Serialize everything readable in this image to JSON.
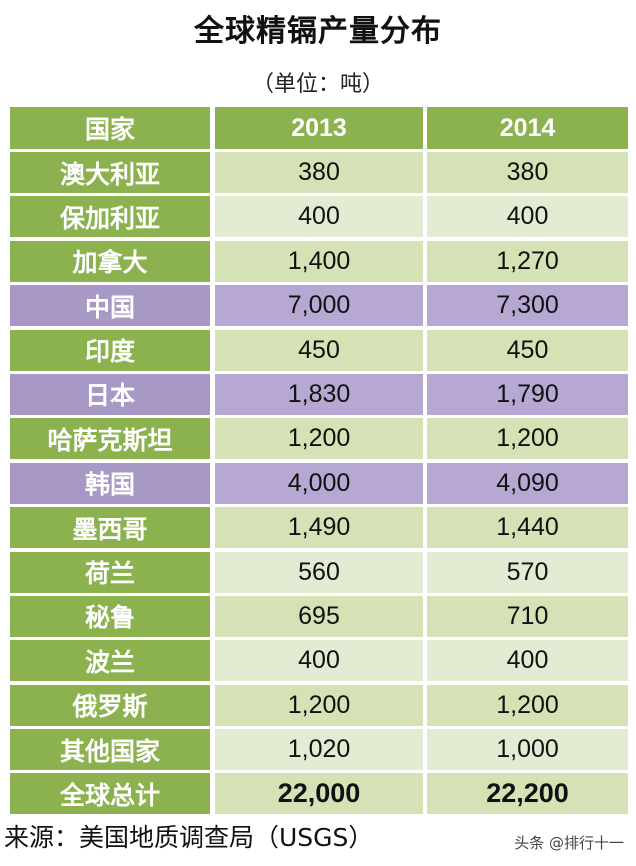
{
  "title": "全球精镉产量分布",
  "unit": "（单位：吨）",
  "chart_data": {
    "type": "table",
    "title": "全球精镉产量分布",
    "unit": "（单位：吨）",
    "columns": [
      "国家",
      "2013",
      "2014"
    ],
    "rows": [
      {
        "country": "澳大利亚",
        "v2013": "380",
        "v2014": "380",
        "highlight": false
      },
      {
        "country": "保加利亚",
        "v2013": "400",
        "v2014": "400",
        "highlight": false
      },
      {
        "country": "加拿大",
        "v2013": "1,400",
        "v2014": "1,270",
        "highlight": false
      },
      {
        "country": "中国",
        "v2013": "7,000",
        "v2014": "7,300",
        "highlight": true
      },
      {
        "country": "印度",
        "v2013": "450",
        "v2014": "450",
        "highlight": false
      },
      {
        "country": "日本",
        "v2013": "1,830",
        "v2014": "1,790",
        "highlight": true
      },
      {
        "country": "哈萨克斯坦",
        "v2013": "1,200",
        "v2014": "1,200",
        "highlight": false
      },
      {
        "country": "韩国",
        "v2013": "4,000",
        "v2014": "4,090",
        "highlight": true
      },
      {
        "country": "墨西哥",
        "v2013": "1,490",
        "v2014": "1,440",
        "highlight": false
      },
      {
        "country": "荷兰",
        "v2013": "560",
        "v2014": "570",
        "highlight": false
      },
      {
        "country": "秘鲁",
        "v2013": "695",
        "v2014": "710",
        "highlight": false
      },
      {
        "country": "波兰",
        "v2013": "400",
        "v2014": "400",
        "highlight": false
      },
      {
        "country": "俄罗斯",
        "v2013": "1,200",
        "v2014": "1,200",
        "highlight": false
      },
      {
        "country": "其他国家",
        "v2013": "1,020",
        "v2014": "1,000",
        "highlight": false
      }
    ],
    "total": {
      "country": "全球总计",
      "v2013": "22,000",
      "v2014": "22,200"
    },
    "colors": {
      "header": "#8cb24f",
      "highlight": "#b6a8d2",
      "cell": "#d4e2b6"
    }
  },
  "source": "来源：美国地质调查局（USGS）",
  "watermark": "头条 @排行十一"
}
